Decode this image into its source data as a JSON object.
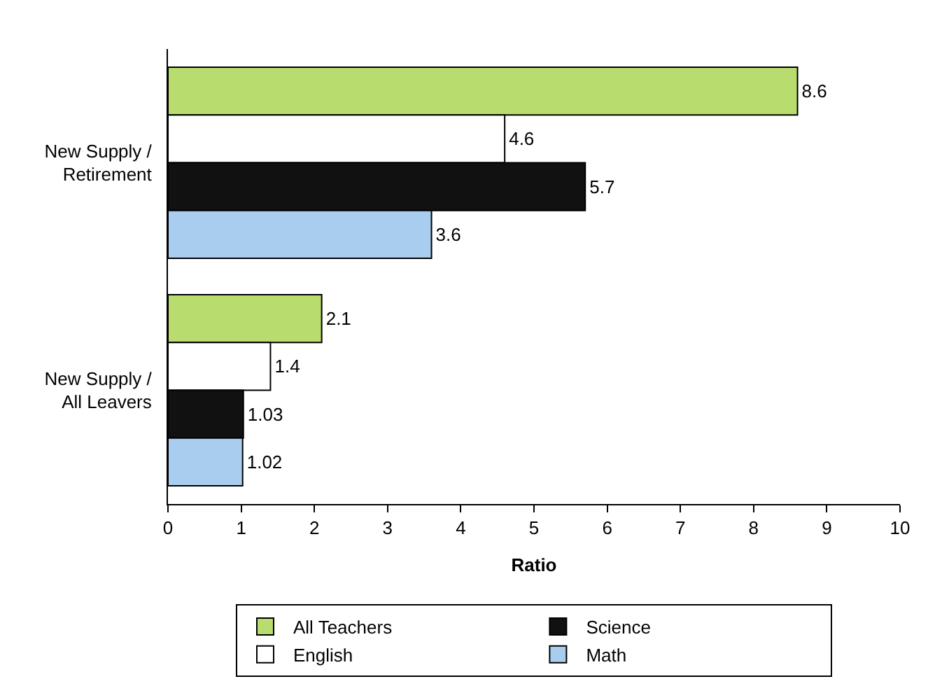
{
  "chart_data": {
    "type": "bar",
    "orientation": "horizontal",
    "xlabel": "Ratio",
    "categories": [
      "New Supply /\nRetirement",
      "New Supply /\nAll Leavers"
    ],
    "series": [
      {
        "name": "All Teachers",
        "color": "#b8dc6e",
        "values": [
          8.6,
          2.1
        ]
      },
      {
        "name": "English",
        "color": "#ffffff",
        "values": [
          4.6,
          1.4
        ]
      },
      {
        "name": "Science",
        "color": "#111111",
        "values": [
          5.7,
          1.03
        ]
      },
      {
        "name": "Math",
        "color": "#a9cdef",
        "values": [
          3.6,
          1.02
        ]
      }
    ],
    "xlim": [
      0,
      10
    ],
    "xticks": [
      0,
      1,
      2,
      3,
      4,
      5,
      6,
      7,
      8,
      9,
      10
    ],
    "data_labels": true,
    "legend": "bottom"
  }
}
